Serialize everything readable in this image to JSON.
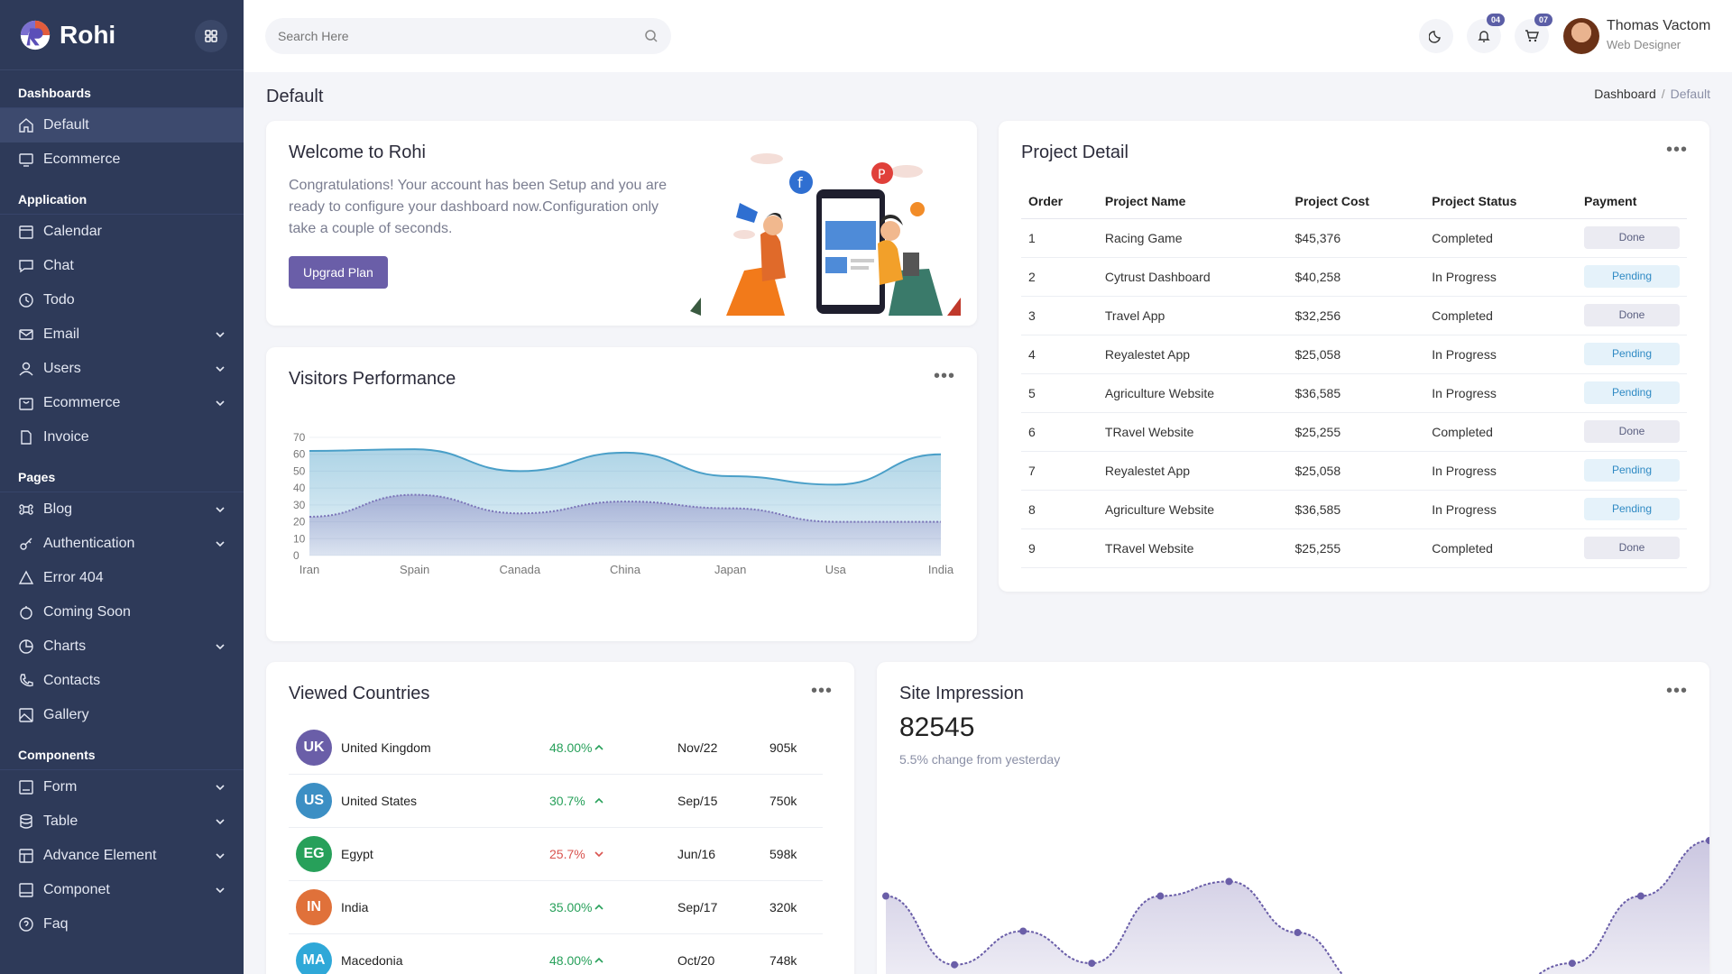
{
  "brand": {
    "name": "Rohi"
  },
  "sidebar": {
    "sections": [
      {
        "title": "Dashboards",
        "items": [
          {
            "label": "Default",
            "icon": "home-icon",
            "active": true,
            "chevron": false
          },
          {
            "label": "Ecommerce",
            "icon": "monitor-icon",
            "chevron": false
          }
        ]
      },
      {
        "title": "Application",
        "items": [
          {
            "label": "Calendar",
            "icon": "calendar-icon",
            "chevron": false
          },
          {
            "label": "Chat",
            "icon": "chat-icon",
            "chevron": false
          },
          {
            "label": "Todo",
            "icon": "clock-icon",
            "chevron": false
          },
          {
            "label": "Email",
            "icon": "mail-icon",
            "chevron": true
          },
          {
            "label": "Users",
            "icon": "user-icon",
            "chevron": true
          },
          {
            "label": "Ecommerce",
            "icon": "shop-icon",
            "chevron": true
          },
          {
            "label": "Invoice",
            "icon": "file-icon",
            "chevron": false
          }
        ]
      },
      {
        "title": "Pages",
        "items": [
          {
            "label": "Blog",
            "icon": "command-icon",
            "chevron": true
          },
          {
            "label": "Authentication",
            "icon": "key-icon",
            "chevron": true
          },
          {
            "label": "Error 404",
            "icon": "warning-icon",
            "chevron": false
          },
          {
            "label": "Coming Soon",
            "icon": "stopwatch-icon",
            "chevron": false
          },
          {
            "label": "Charts",
            "icon": "pie-chart-icon",
            "chevron": true
          },
          {
            "label": "Contacts",
            "icon": "phone-icon",
            "chevron": false
          },
          {
            "label": "Gallery",
            "icon": "image-icon",
            "chevron": false
          }
        ]
      },
      {
        "title": "Components",
        "items": [
          {
            "label": "Form",
            "icon": "form-icon",
            "chevron": true
          },
          {
            "label": "Table",
            "icon": "database-icon",
            "chevron": true
          },
          {
            "label": "Advance Element",
            "icon": "layout-icon",
            "chevron": true
          },
          {
            "label": "Componet",
            "icon": "box-icon",
            "chevron": true
          },
          {
            "label": "Faq",
            "icon": "help-icon",
            "chevron": false
          }
        ]
      }
    ]
  },
  "header": {
    "search_placeholder": "Search Here",
    "notifications_count": "04",
    "cart_count": "07",
    "user_name": "Thomas Vactom",
    "user_role": "Web Designer"
  },
  "page": {
    "title": "Default",
    "breadcrumb": [
      "Dashboard",
      "Default"
    ]
  },
  "welcome": {
    "title": "Welcome to Rohi",
    "text": "Congratulations! Your account has been Setup and you are ready to configure your dashboard now.Configuration only take a couple of seconds.",
    "button": "Upgrad Plan"
  },
  "visitors": {
    "title": "Visitors Performance",
    "chart_data": {
      "type": "area",
      "categories": [
        "Iran",
        "Spain",
        "Canada",
        "China",
        "Japan",
        "Usa",
        "India"
      ],
      "series": [
        {
          "values": [
            62,
            63,
            50,
            61,
            47,
            42,
            60
          ],
          "color": "#4a9fc8"
        },
        {
          "values": [
            23,
            36,
            25,
            32,
            28,
            20,
            20
          ],
          "color": "#7b74b8"
        }
      ],
      "yticks": [
        0,
        10,
        20,
        30,
        40,
        50,
        60,
        70
      ],
      "ylim": [
        0,
        70
      ]
    }
  },
  "project": {
    "title": "Project Detail",
    "columns": [
      "Order",
      "Project Name",
      "Project Cost",
      "Project Status",
      "Payment"
    ],
    "rows": [
      {
        "order": "1",
        "name": "Racing Game",
        "cost": "$45,376",
        "status": "Completed",
        "payment": "Done"
      },
      {
        "order": "2",
        "name": "Cytrust Dashboard",
        "cost": "$40,258",
        "status": "In Progress",
        "payment": "Pending"
      },
      {
        "order": "3",
        "name": "Travel App",
        "cost": "$32,256",
        "status": "Completed",
        "payment": "Done"
      },
      {
        "order": "4",
        "name": "Reyalestet App",
        "cost": "$25,058",
        "status": "In Progress",
        "payment": "Pending"
      },
      {
        "order": "5",
        "name": "Agriculture Website",
        "cost": "$36,585",
        "status": "In Progress",
        "payment": "Pending"
      },
      {
        "order": "6",
        "name": "TRavel Website",
        "cost": "$25,255",
        "status": "Completed",
        "payment": "Done"
      },
      {
        "order": "7",
        "name": "Reyalestet App",
        "cost": "$25,058",
        "status": "In Progress",
        "payment": "Pending"
      },
      {
        "order": "8",
        "name": "Agriculture Website",
        "cost": "$36,585",
        "status": "In Progress",
        "payment": "Pending"
      },
      {
        "order": "9",
        "name": "TRavel Website",
        "cost": "$25,255",
        "status": "Completed",
        "payment": "Done"
      }
    ]
  },
  "countries": {
    "title": "Viewed Countries",
    "rows": [
      {
        "code": "UK",
        "name": "United Kingdom",
        "pct": "48.00%",
        "trend": "up",
        "date": "Nov/22",
        "value": "905k",
        "color": "#6a5ea8"
      },
      {
        "code": "US",
        "name": "United States",
        "pct": "30.7%",
        "trend": "up",
        "date": "Sep/15",
        "value": "750k",
        "color": "#3c8fc4"
      },
      {
        "code": "EG",
        "name": "Egypt",
        "pct": "25.7%",
        "trend": "down",
        "date": "Jun/16",
        "value": "598k",
        "color": "#27a05a"
      },
      {
        "code": "IN",
        "name": "India",
        "pct": "35.00%",
        "trend": "up",
        "date": "Sep/17",
        "value": "320k",
        "color": "#e0713a"
      },
      {
        "code": "MA",
        "name": "Macedonia",
        "pct": "48.00%",
        "trend": "up",
        "date": "Oct/20",
        "value": "748k",
        "color": "#2fa8d8"
      }
    ]
  },
  "impression": {
    "title": "Site Impression",
    "value": "82545",
    "subtitle": "5.5% change from yesterday",
    "chart_data": {
      "type": "area",
      "values": [
        62,
        15,
        38,
        16,
        62,
        72,
        37,
        0,
        0,
        0,
        16,
        62,
        100
      ],
      "color": "#6a5ea8"
    }
  },
  "colors": {
    "accent": "#6a5ea8",
    "sidebar": "#2e3a59",
    "up": "#27a05a",
    "down": "#d9534f"
  }
}
